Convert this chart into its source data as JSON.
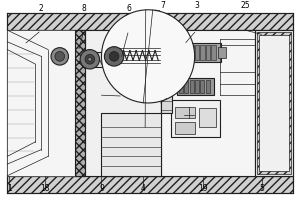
{
  "bg": "#f0f0f0",
  "lc": "#404040",
  "dc": "#202020",
  "wc": "#ffffff",
  "hatch_fc": "#d0d0d0",
  "label_fs": 5.5,
  "top_labels": {
    "2": 38,
    "8": 82,
    "6": 128,
    "7": 163,
    "3": 198,
    "25": 248
  },
  "bot_labels": {
    "1": 5,
    "18": 42,
    "9": 100,
    "4": 143,
    "19": 205,
    "5": 265
  }
}
